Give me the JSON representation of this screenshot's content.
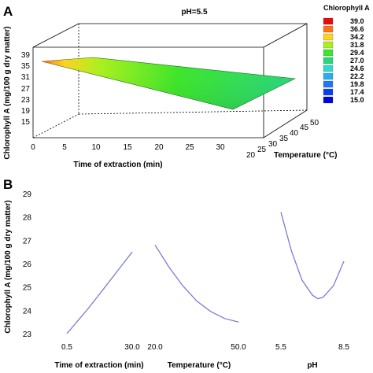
{
  "chart_data": [
    {
      "panel": "A",
      "type": "surface3d",
      "title": "pH=5.5",
      "xlabel": "Time of extraction (min)",
      "ylabel": "Temperature (°C)",
      "zlabel": "Chlorophyll A (mg/100 g dry matter)",
      "x_ticks": [
        "0",
        "5",
        "10",
        "15",
        "20",
        "25",
        "30"
      ],
      "y_ticks": [
        "20",
        "25",
        "30",
        "35",
        "40",
        "45",
        "50"
      ],
      "z_ticks": [
        "15",
        "19",
        "23",
        "27",
        "31",
        "35",
        "39"
      ],
      "xlim": [
        0,
        30
      ],
      "ylim": [
        20,
        50
      ],
      "zlim": [
        15,
        39
      ],
      "corner_values": [
        {
          "time": 0,
          "temperature": 20,
          "chlorophyll_a": 36.5
        },
        {
          "time": 30,
          "temperature": 20,
          "chlorophyll_a": 26.0
        },
        {
          "time": 0,
          "temperature": 50,
          "chlorophyll_a": 33.0
        },
        {
          "time": 30,
          "temperature": 50,
          "chlorophyll_a": 29.5
        }
      ],
      "legend": {
        "title": "Chlorophyll A",
        "levels": [
          {
            "label": "15.0",
            "color": "#0000e0"
          },
          {
            "label": "17.4",
            "color": "#0a3cf0"
          },
          {
            "label": "19.8",
            "color": "#1e78f5"
          },
          {
            "label": "22.2",
            "color": "#2aaaf0"
          },
          {
            "label": "24.6",
            "color": "#32d7d2"
          },
          {
            "label": "27.0",
            "color": "#28d778"
          },
          {
            "label": "29.4",
            "color": "#3ce628"
          },
          {
            "label": "31.8",
            "color": "#aaf01e"
          },
          {
            "label": "34.2",
            "color": "#ffd21e"
          },
          {
            "label": "36.6",
            "color": "#ff6e14"
          },
          {
            "label": "39.0",
            "color": "#e60a0a"
          }
        ]
      }
    },
    {
      "panel": "B",
      "type": "line",
      "ylabel": "Chlorophyll A (mg/100 g dry matter)",
      "ylim": [
        23,
        29
      ],
      "y_ticks": [
        "23",
        "24",
        "25",
        "26",
        "27",
        "28",
        "29"
      ],
      "line_color": "#7b7bd6",
      "groups": [
        {
          "label": "Time of extraction (min)",
          "tick_labels": [
            "0.5",
            "30.0"
          ],
          "x": [
            0.5,
            5.4,
            10.3,
            15.3,
            20.2,
            25.1,
            30.0
          ],
          "y": [
            23.0,
            23.55,
            24.1,
            24.7,
            25.3,
            25.9,
            26.5
          ]
        },
        {
          "label": "Temperature (°C)",
          "tick_labels": [
            "20.0",
            "50.0"
          ],
          "x": [
            20,
            25,
            30,
            35,
            40,
            45,
            50
          ],
          "y": [
            26.8,
            25.85,
            25.05,
            24.4,
            23.95,
            23.65,
            23.5
          ]
        },
        {
          "label": "pH",
          "tick_labels": [
            "5.5",
            "8.5"
          ],
          "x": [
            5.5,
            6.0,
            6.5,
            7.0,
            7.25,
            7.5,
            8.0,
            8.5
          ],
          "y": [
            28.2,
            26.55,
            25.3,
            24.65,
            24.5,
            24.55,
            25.05,
            26.1
          ]
        }
      ]
    }
  ]
}
